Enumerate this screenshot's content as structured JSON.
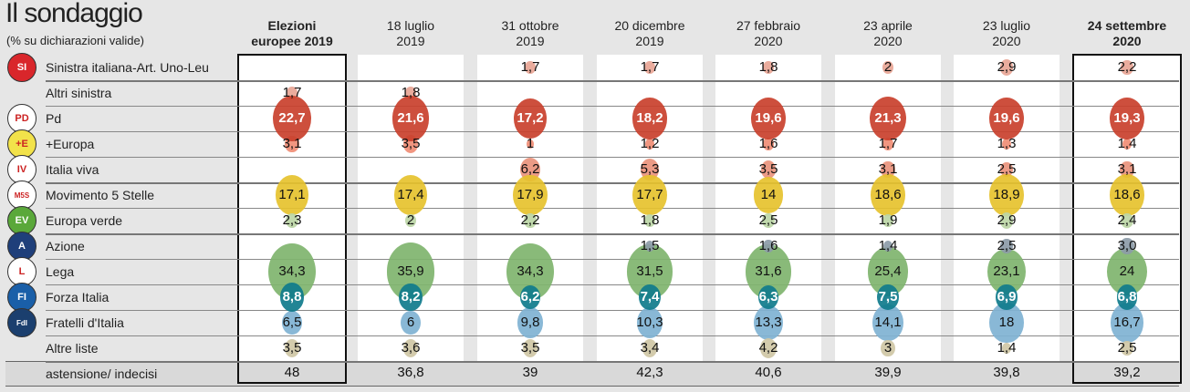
{
  "header": {
    "title": "Il sondaggio",
    "subtitle": "(% su dichiarazioni valide)"
  },
  "chart_data": {
    "type": "bubble-table",
    "title": "Il sondaggio",
    "subtitle": "(% su dichiarazioni valide)",
    "columns": [
      {
        "line1": "Elezioni",
        "line2": "europee 2019",
        "highlight": true
      },
      {
        "line1": "18 luglio",
        "line2": "2019"
      },
      {
        "line1": "31 ottobre",
        "line2": "2019"
      },
      {
        "line1": "20 dicembre",
        "line2": "2019"
      },
      {
        "line1": "27 febbraio",
        "line2": "2020"
      },
      {
        "line1": "23 aprile",
        "line2": "2020"
      },
      {
        "line1": "23 luglio",
        "line2": "2020"
      },
      {
        "line1": "24 settembre",
        "line2": "2020",
        "highlight": true
      }
    ],
    "series": [
      {
        "name": "Sinistra italiana-Art. Uno-Leu",
        "logo": "SI",
        "color": "#e8a595",
        "values": [
          null,
          null,
          "1,7",
          "1,7",
          "1,8",
          "2",
          "2,9",
          "2,2"
        ]
      },
      {
        "name": "Altri sinistra",
        "logo": "",
        "color": "#e8a595",
        "values": [
          "1,7",
          "1,8",
          null,
          null,
          null,
          null,
          null,
          null
        ]
      },
      {
        "name": "Pd",
        "logo": "PD",
        "color": "#c9402c",
        "values": [
          "22,7",
          "21,6",
          "17,2",
          "18,2",
          "19,6",
          "21,3",
          "19,6",
          "19,3"
        ]
      },
      {
        "name": "+Europa",
        "logo": "+E",
        "color": "#f08d75",
        "values": [
          "3,1",
          "3,5",
          "1",
          "1,2",
          "1,6",
          "1,7",
          "1,3",
          "1,4"
        ]
      },
      {
        "name": "Italia viva",
        "logo": "IV",
        "color": "#e9937c",
        "values": [
          null,
          null,
          "6,2",
          "5,3",
          "3,5",
          "3,1",
          "2,5",
          "3,1"
        ]
      },
      {
        "name": "Movimento 5 Stelle",
        "logo": "M5S",
        "color": "#e6c22e",
        "values": [
          "17,1",
          "17,4",
          "17,9",
          "17,7",
          "14",
          "18,6",
          "18,9",
          "18,6"
        ]
      },
      {
        "name": "Europa verde",
        "logo": "EV",
        "color": "#bcd6a6",
        "values": [
          "2,3",
          "2",
          "2,2",
          "1,8",
          "2,5",
          "1,9",
          "2,9",
          "2,4"
        ]
      },
      {
        "name": "Azione",
        "logo": "A",
        "color": "#8c9ba8",
        "values": [
          null,
          null,
          null,
          "1,5",
          "1,6",
          "1,4",
          "2,5",
          "3,0"
        ]
      },
      {
        "name": "Lega",
        "logo": "L",
        "color": "#7fb46e",
        "values": [
          "34,3",
          "35,9",
          "34,3",
          "31,5",
          "31,6",
          "25,4",
          "23,1",
          "24"
        ]
      },
      {
        "name": "Forza Italia",
        "logo": "FI",
        "color": "#0f7b8c",
        "values": [
          "8,8",
          "8,2",
          "6,2",
          "7,4",
          "6,3",
          "7,5",
          "6,9",
          "6,8"
        ]
      },
      {
        "name": "Fratelli d'Italia",
        "logo": "FdI",
        "color": "#7fb2d2",
        "values": [
          "6,5",
          "6",
          "9,8",
          "10,3",
          "13,3",
          "14,1",
          "18",
          "16,7"
        ]
      },
      {
        "name": "Altre liste",
        "logo": "",
        "color": "#cfc7a5",
        "values": [
          "3,5",
          "3,6",
          "3,5",
          "3,4",
          "4,2",
          "3",
          "1,4",
          "2,5"
        ]
      }
    ],
    "abstention": {
      "name": "astensione/ indecisi",
      "values": [
        "48",
        "36,8",
        "39",
        "42,3",
        "40,6",
        "39,9",
        "39,8",
        "39,2"
      ]
    }
  },
  "logo_colors": {
    "SI": "#d9262b",
    "PD": "#fff",
    "+E": "#f2e24a",
    "IV": "#fff",
    "M5S": "#fff",
    "EV": "#5aa83a",
    "A": "#1f3f7a",
    "L": "#fff",
    "FI": "#1a5fa8",
    "FdI": "#1b3f6e"
  }
}
